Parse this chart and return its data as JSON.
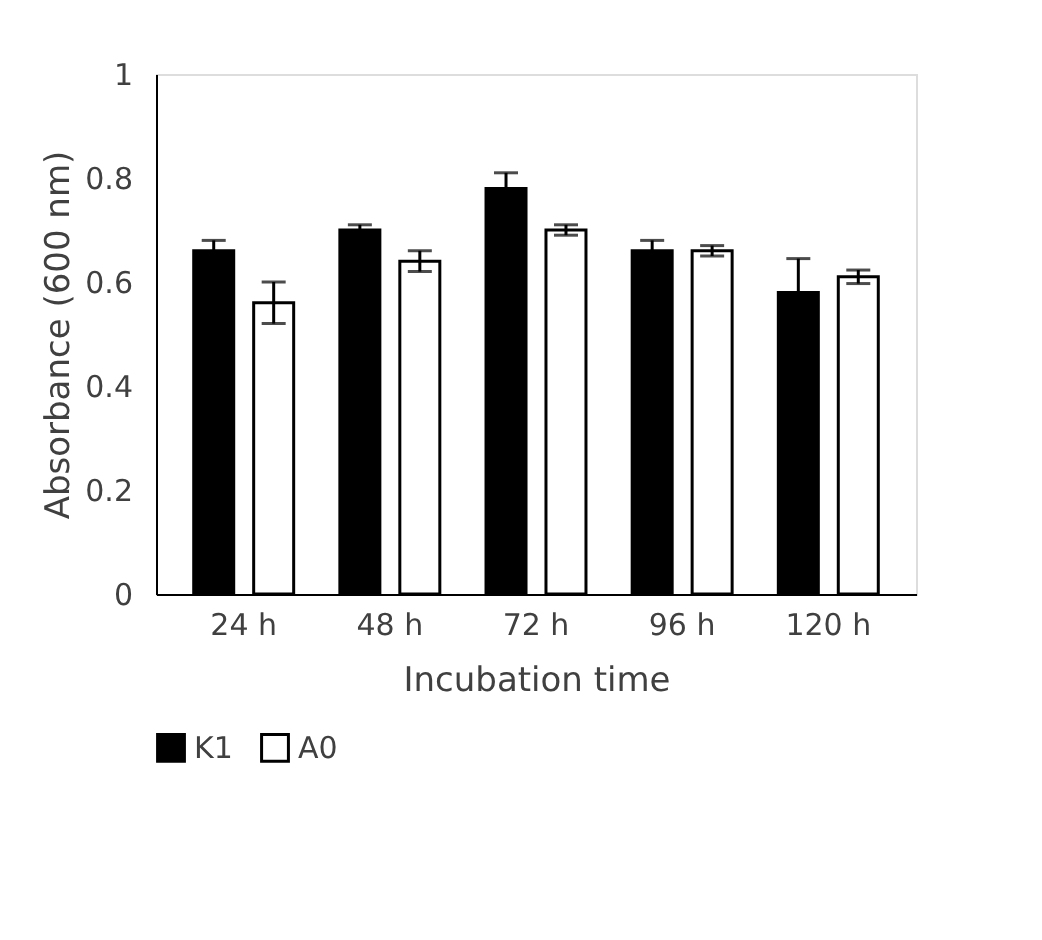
{
  "chart_data": {
    "type": "bar",
    "xlabel": "Incubation time",
    "ylabel": "Absorbance (600 nm)",
    "categories": [
      "24 h",
      "48 h",
      "72 h",
      "96 h",
      "120 h"
    ],
    "series": [
      {
        "name": "K1",
        "color": "#000000",
        "values": [
          0.66,
          0.7,
          0.78,
          0.66,
          0.58
        ],
        "errors": [
          0.02,
          0.01,
          0.03,
          0.02,
          0.065
        ]
      },
      {
        "name": "A0",
        "color": "#ffffff",
        "values": [
          0.56,
          0.64,
          0.7,
          0.66,
          0.61
        ],
        "errors": [
          0.04,
          0.02,
          0.01,
          0.01,
          0.013
        ]
      }
    ],
    "ylim": [
      0,
      1
    ],
    "yticks": [
      0,
      0.2,
      0.4,
      0.6,
      0.8,
      1
    ],
    "grid": false,
    "legend": "bottom"
  }
}
